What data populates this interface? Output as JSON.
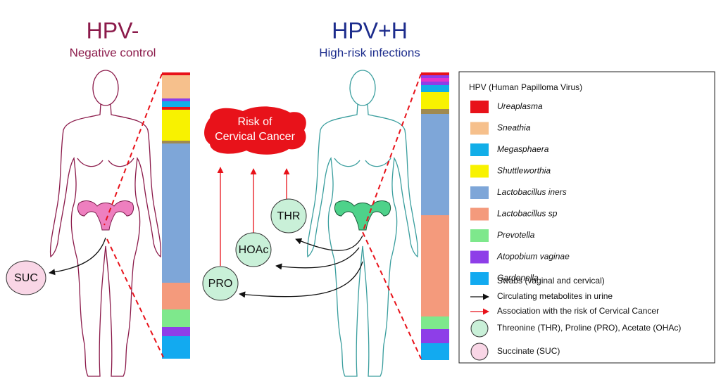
{
  "groups": [
    {
      "title": "HPV-",
      "subtitle": "Negative control",
      "color": "#8b1a4a"
    },
    {
      "title": "HPV+H",
      "subtitle": "High-risk infections",
      "color": "#1c2c8c"
    }
  ],
  "risk_label": [
    "Risk of",
    "Cervical Cancer"
  ],
  "metabolites": [
    "SUC",
    "PRO",
    "HOAc",
    "THR"
  ],
  "legend": {
    "title": "HPV  (Human Papilloma Virus)",
    "taxa": [
      {
        "name": "Ureaplasma",
        "color": "#e8121a"
      },
      {
        "name": "Sneathia",
        "color": "#f6c08c"
      },
      {
        "name": "Megasphaera",
        "color": "#12aee8"
      },
      {
        "name": "Shuttleworthia",
        "color": "#f8f200"
      },
      {
        "name": "Lactobacillus iners",
        "color": "#7ea6d8"
      },
      {
        "name": "Lactobacillus sp",
        "color": "#f49a7c"
      },
      {
        "name": "Prevotella",
        "color": "#7ee88c"
      },
      {
        "name": "Atopobium vaginae",
        "color": "#8e3ee8"
      },
      {
        "name": "Gardenella",
        "color": "#12aaf0"
      }
    ],
    "keys": [
      "Swabs (vaginal and cervical)",
      "Circulating metabolites in urine",
      "Association with the risk of Cervical Cancer",
      "Threonine (THR), Proline (PRO), Acetate (OHAc)",
      "Succinate (SUC)"
    ]
  }
}
